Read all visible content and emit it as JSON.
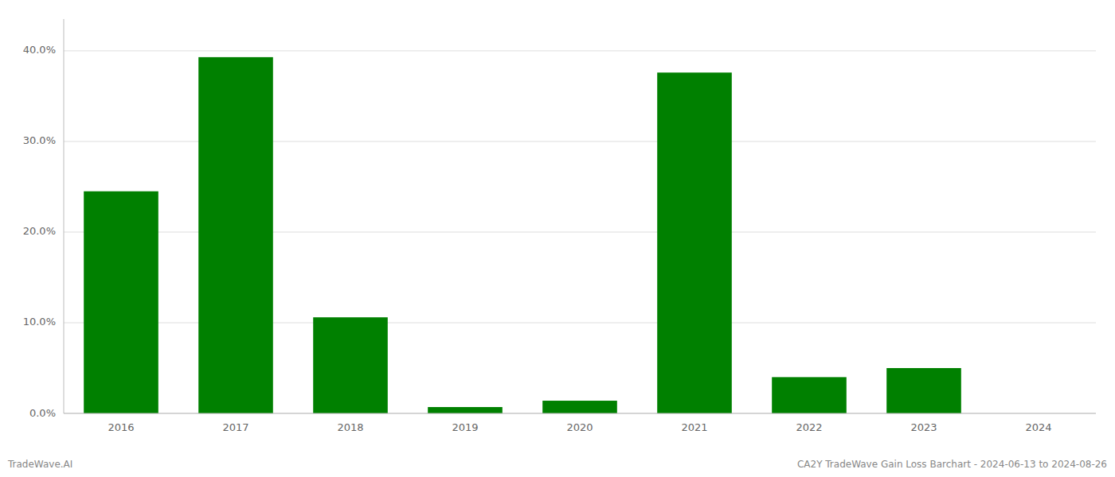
{
  "chart_data": {
    "type": "bar",
    "categories": [
      "2016",
      "2017",
      "2018",
      "2019",
      "2020",
      "2021",
      "2022",
      "2023",
      "2024"
    ],
    "values": [
      0.245,
      0.393,
      0.106,
      0.007,
      0.014,
      0.376,
      0.04,
      0.05,
      0.0
    ],
    "color": "#008000",
    "ylim": [
      0.0,
      0.435
    ],
    "yticks": [
      {
        "value": 0.0,
        "label": "0.0%"
      },
      {
        "value": 0.1,
        "label": "10.0%"
      },
      {
        "value": 0.2,
        "label": "20.0%"
      },
      {
        "value": 0.3,
        "label": "30.0%"
      },
      {
        "value": 0.4,
        "label": "40.0%"
      }
    ],
    "grid": true,
    "annotations": [
      "TradeWave.AI",
      "CA2Y TradeWave Gain Loss Barchart - 2024-06-13 to 2024-08-26"
    ]
  }
}
